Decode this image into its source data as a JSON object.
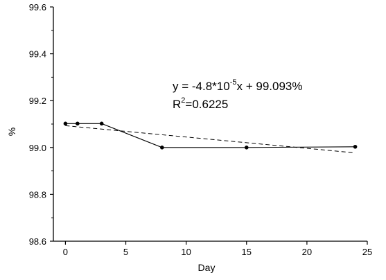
{
  "chart_data": {
    "type": "line",
    "title": "",
    "xlabel": "Day",
    "ylabel": "%",
    "xlim": [
      -1,
      25
    ],
    "ylim": [
      98.6,
      99.6
    ],
    "x_ticks": [
      0,
      5,
      10,
      15,
      20,
      25
    ],
    "x_tick_labels": [
      "0",
      "5",
      "10",
      "15",
      "20",
      "25"
    ],
    "y_ticks": [
      98.6,
      98.8,
      99.0,
      99.2,
      99.4,
      99.6
    ],
    "y_tick_labels": [
      "98.6",
      "98.8",
      "99.0",
      "99.2",
      "99.4",
      "99.6"
    ],
    "grid": false,
    "legend": "none",
    "series": [
      {
        "style": "solid line with markers",
        "x": [
          0,
          1,
          3,
          8,
          15,
          24
        ],
        "y": [
          99.102,
          99.102,
          99.102,
          99.0,
          99.0,
          99.003
        ]
      },
      {
        "style": "dashed linear fit",
        "x": [
          0,
          24
        ],
        "y": [
          99.093,
          98.977
        ]
      }
    ],
    "annotations": [
      {
        "text_parts": [
          "y = -4.8*10",
          "-5",
          "x + 99.093%"
        ]
      },
      {
        "text_parts": [
          "R",
          "2",
          "=0.6225"
        ]
      }
    ]
  }
}
